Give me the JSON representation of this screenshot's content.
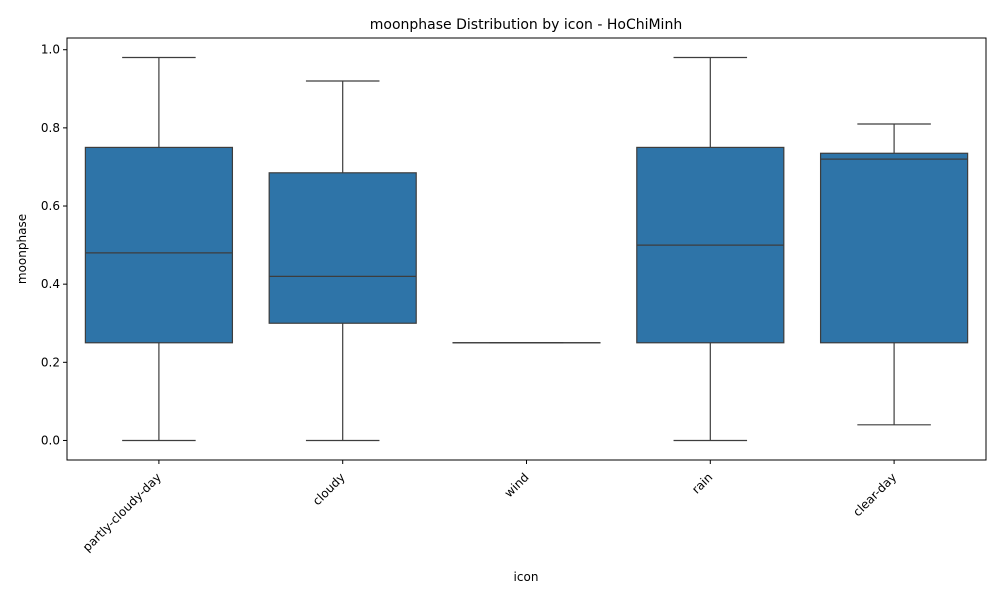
{
  "chart_data": {
    "type": "box",
    "title": "moonphase Distribution by icon - HoChiMinh",
    "xlabel": "icon",
    "ylabel": "moonphase",
    "ylim": [
      -0.05,
      1.03
    ],
    "yticks": [
      0.0,
      0.2,
      0.4,
      0.6,
      0.8,
      1.0
    ],
    "ytick_labels": [
      "0.0",
      "0.2",
      "0.4",
      "0.6",
      "0.8",
      "1.0"
    ],
    "categories": [
      "partly-cloudy-day",
      "cloudy",
      "wind",
      "rain",
      "clear-day"
    ],
    "boxes": [
      {
        "category": "partly-cloudy-day",
        "whisker_low": 0.0,
        "q1": 0.25,
        "median": 0.48,
        "q3": 0.75,
        "whisker_high": 0.98
      },
      {
        "category": "cloudy",
        "whisker_low": 0.0,
        "q1": 0.3,
        "median": 0.42,
        "q3": 0.685,
        "whisker_high": 0.92
      },
      {
        "category": "wind",
        "whisker_low": 0.25,
        "q1": 0.25,
        "median": 0.25,
        "q3": 0.25,
        "whisker_high": 0.25
      },
      {
        "category": "rain",
        "whisker_low": 0.0,
        "q1": 0.25,
        "median": 0.5,
        "q3": 0.75,
        "whisker_high": 0.98
      },
      {
        "category": "clear-day",
        "whisker_low": 0.04,
        "q1": 0.25,
        "median": 0.72,
        "q3": 0.735,
        "whisker_high": 0.81
      }
    ],
    "grid": false,
    "legend": "none",
    "colors": {
      "box_fill": "#2e74a8",
      "line": "#3d3d3d",
      "axis": "#000000"
    }
  }
}
